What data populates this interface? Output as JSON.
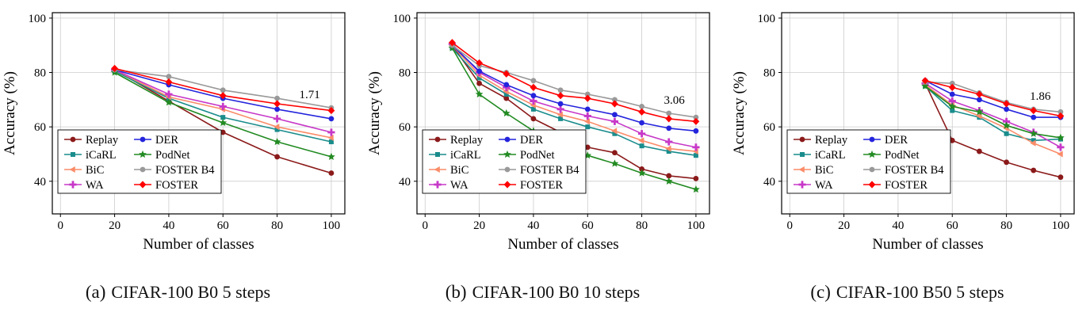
{
  "page": {
    "background": "#ffffff"
  },
  "chart_data": [
    {
      "type": "line",
      "caption_label": "(a)",
      "caption_text": "CIFAR-100 B0 5 steps",
      "xlabel": "Number of classes",
      "ylabel": "Accuracy (%)",
      "xlim": [
        -3,
        105
      ],
      "ylim": [
        28,
        102
      ],
      "xticks": [
        0,
        20,
        40,
        60,
        80,
        100
      ],
      "yticks": [
        40,
        60,
        80,
        100
      ],
      "grid": true,
      "legend_position": "lower-left",
      "legend_columns": [
        [
          "Replay",
          "iCaRL",
          "BiC",
          "WA"
        ],
        [
          "DER",
          "PodNet",
          "FOSTER B4",
          "FOSTER"
        ]
      ],
      "annotation": {
        "text": "1.71",
        "x": 92,
        "y": 70.5
      },
      "x": [
        20,
        40,
        60,
        80,
        100
      ],
      "series": [
        {
          "name": "Replay",
          "color": "#8B1A1A",
          "marker": "circle",
          "values": [
            81,
            69.5,
            58,
            49,
            43
          ]
        },
        {
          "name": "iCaRL",
          "color": "#1A8C8C",
          "marker": "square",
          "values": [
            80.5,
            70.5,
            63.5,
            59,
            54.5
          ]
        },
        {
          "name": "BiC",
          "color": "#FA8C69",
          "marker": "triangle-left",
          "values": [
            81,
            71,
            66.5,
            60,
            56
          ]
        },
        {
          "name": "WA",
          "color": "#C738C8",
          "marker": "plus",
          "values": [
            81,
            72,
            67.5,
            63,
            58
          ]
        },
        {
          "name": "PodNet",
          "color": "#228B22",
          "marker": "star",
          "values": [
            80,
            69,
            61.5,
            54.5,
            49
          ]
        },
        {
          "name": "DER",
          "color": "#2424DD",
          "marker": "circle",
          "values": [
            81,
            75.5,
            70.5,
            66.5,
            63
          ]
        },
        {
          "name": "FOSTER B4",
          "color": "#999999",
          "marker": "circle",
          "values": [
            81,
            78.5,
            73.5,
            70.5,
            67
          ]
        },
        {
          "name": "FOSTER",
          "color": "#FF0000",
          "marker": "diamond",
          "values": [
            81.5,
            76.5,
            71.5,
            68.5,
            66
          ]
        }
      ]
    },
    {
      "type": "line",
      "caption_label": "(b)",
      "caption_text": "CIFAR-100 B0 10 steps",
      "xlabel": "Number of classes",
      "ylabel": "Accuracy (%)",
      "xlim": [
        -3,
        105
      ],
      "ylim": [
        28,
        102
      ],
      "xticks": [
        0,
        20,
        40,
        60,
        80,
        100
      ],
      "yticks": [
        40,
        60,
        80,
        100
      ],
      "grid": true,
      "legend_position": "lower-left",
      "legend_columns": [
        [
          "Replay",
          "iCaRL",
          "BiC",
          "WA"
        ],
        [
          "DER",
          "PodNet",
          "FOSTER B4",
          "FOSTER"
        ]
      ],
      "annotation": {
        "text": "3.06",
        "x": 92,
        "y": 68.5
      },
      "x": [
        10,
        20,
        30,
        40,
        50,
        60,
        70,
        80,
        90,
        100
      ],
      "series": [
        {
          "name": "Replay",
          "color": "#8B1A1A",
          "marker": "circle",
          "values": [
            90,
            76,
            70.5,
            63,
            58,
            52.5,
            50.5,
            44.5,
            42,
            41
          ]
        },
        {
          "name": "iCaRL",
          "color": "#1A8C8C",
          "marker": "square",
          "values": [
            89,
            78,
            72,
            66.5,
            63,
            60,
            57.5,
            53,
            51,
            49.5
          ]
        },
        {
          "name": "BiC",
          "color": "#FA8C69",
          "marker": "triangle-left",
          "values": [
            90,
            79,
            73,
            68,
            64.5,
            62,
            58.5,
            55,
            52,
            51
          ]
        },
        {
          "name": "WA",
          "color": "#C738C8",
          "marker": "plus",
          "values": [
            90.5,
            80,
            74.5,
            69.5,
            66.5,
            64,
            62,
            57.5,
            54.5,
            52.5
          ]
        },
        {
          "name": "PodNet",
          "color": "#228B22",
          "marker": "star",
          "values": [
            89,
            72,
            65,
            58.5,
            54,
            49.5,
            46.5,
            43,
            40,
            37
          ]
        },
        {
          "name": "DER",
          "color": "#2424DD",
          "marker": "circle",
          "values": [
            90,
            80.5,
            75.5,
            71.5,
            68.5,
            66.5,
            64.5,
            61.5,
            59.5,
            58.5
          ]
        },
        {
          "name": "FOSTER B4",
          "color": "#999999",
          "marker": "circle",
          "values": [
            90,
            82.5,
            80,
            77,
            73.5,
            72,
            70,
            67.5,
            65,
            63.5
          ]
        },
        {
          "name": "FOSTER",
          "color": "#FF0000",
          "marker": "diamond",
          "values": [
            91,
            83.5,
            79.5,
            74.5,
            71.5,
            70.5,
            68.5,
            65.5,
            63,
            62
          ]
        }
      ]
    },
    {
      "type": "line",
      "caption_label": "(c)",
      "caption_text": "CIFAR-100 B50 5 steps",
      "xlabel": "Number of classes",
      "ylabel": "Accuracy (%)",
      "xlim": [
        -3,
        105
      ],
      "ylim": [
        28,
        102
      ],
      "xticks": [
        0,
        20,
        40,
        60,
        80,
        100
      ],
      "yticks": [
        40,
        60,
        80,
        100
      ],
      "grid": true,
      "legend_position": "lower-left",
      "legend_columns": [
        [
          "Replay",
          "iCaRL",
          "BiC",
          "WA"
        ],
        [
          "DER",
          "PodNet",
          "FOSTER B4",
          "FOSTER"
        ]
      ],
      "annotation": {
        "text": "1.86",
        "x": 92.5,
        "y": 70
      },
      "x": [
        50,
        60,
        70,
        80,
        90,
        100
      ],
      "series": [
        {
          "name": "Replay",
          "color": "#8B1A1A",
          "marker": "circle",
          "values": [
            76,
            55,
            51,
            47,
            44,
            41.5
          ]
        },
        {
          "name": "iCaRL",
          "color": "#1A8C8C",
          "marker": "square",
          "values": [
            75,
            66,
            63.5,
            57.5,
            55,
            55.5
          ]
        },
        {
          "name": "BiC",
          "color": "#FA8C69",
          "marker": "triangle-left",
          "values": [
            75.5,
            68,
            64,
            59.5,
            54,
            50
          ]
        },
        {
          "name": "WA",
          "color": "#C738C8",
          "marker": "plus",
          "values": [
            76,
            69.5,
            66,
            62,
            58,
            52.5
          ]
        },
        {
          "name": "PodNet",
          "color": "#228B22",
          "marker": "star",
          "values": [
            75,
            67.5,
            65.5,
            60.5,
            57.5,
            56
          ]
        },
        {
          "name": "DER",
          "color": "#2424DD",
          "marker": "circle",
          "values": [
            77,
            72,
            70,
            66.5,
            63.5,
            63.5
          ]
        },
        {
          "name": "FOSTER B4",
          "color": "#999999",
          "marker": "circle",
          "values": [
            76.5,
            76,
            72.5,
            69,
            66.5,
            65.5
          ]
        },
        {
          "name": "FOSTER",
          "color": "#FF0000",
          "marker": "diamond",
          "values": [
            77,
            74.5,
            72,
            68.5,
            66,
            64
          ]
        }
      ]
    }
  ]
}
